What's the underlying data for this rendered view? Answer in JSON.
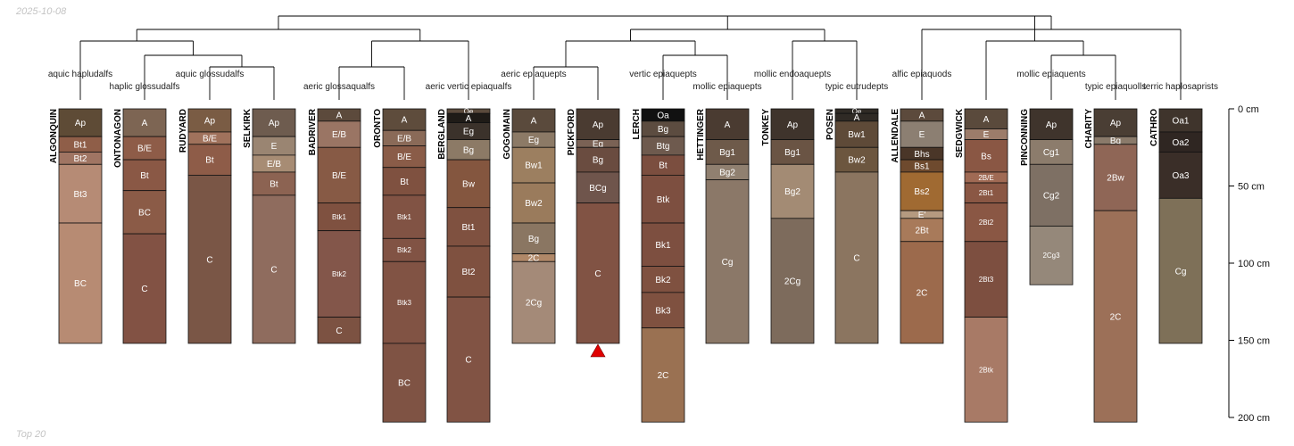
{
  "date": "2025-10-08",
  "footer": "Top 20",
  "depth_axis": {
    "unit": "cm",
    "min": 0,
    "max": 200,
    "ticks": [
      {
        "value": 0,
        "label": "0 cm"
      },
      {
        "value": 50,
        "label": "50 cm"
      },
      {
        "value": 100,
        "label": "100 cm"
      },
      {
        "value": 150,
        "label": "150 cm"
      },
      {
        "value": 200,
        "label": "200 cm"
      }
    ]
  },
  "profiles": [
    {
      "name": "ALGONQUIN",
      "subgroup": "aquic hapludalfs",
      "horizons": [
        {
          "name": "Ap",
          "top": 0,
          "bottom": 18,
          "color": "#5e4b36"
        },
        {
          "name": "Bt1",
          "top": 18,
          "bottom": 28,
          "color": "#8f5e48"
        },
        {
          "name": "Bt2",
          "top": 28,
          "bottom": 36,
          "color": "#a07563"
        },
        {
          "name": "Bt3",
          "top": 36,
          "bottom": 74,
          "color": "#b68b75"
        },
        {
          "name": "BC",
          "top": 74,
          "bottom": 152,
          "color": "#b78b73"
        }
      ]
    },
    {
      "name": "ONTONAGON",
      "subgroup": "haplic glossudalfs",
      "horizons": [
        {
          "name": "A",
          "top": 0,
          "bottom": 18,
          "color": "#7d6553"
        },
        {
          "name": "B/E",
          "top": 18,
          "bottom": 33,
          "color": "#8e5c48"
        },
        {
          "name": "Bt",
          "top": 33,
          "bottom": 53,
          "color": "#8a5845"
        },
        {
          "name": "BC",
          "top": 53,
          "bottom": 81,
          "color": "#8b5b47"
        },
        {
          "name": "C",
          "top": 81,
          "bottom": 152,
          "color": "#825244"
        }
      ]
    },
    {
      "name": "RUDYARD",
      "subgroup": "aquic glossudalfs",
      "horizons": [
        {
          "name": "Ap",
          "top": 0,
          "bottom": 15,
          "color": "#7a5c44"
        },
        {
          "name": "B/E",
          "top": 15,
          "bottom": 23,
          "color": "#a0725c"
        },
        {
          "name": "Bt",
          "top": 23,
          "bottom": 43,
          "color": "#8e5c48"
        },
        {
          "name": "C",
          "top": 43,
          "bottom": 152,
          "color": "#7a5646"
        }
      ]
    },
    {
      "name": "SELKIRK",
      "subgroup": "",
      "horizons": [
        {
          "name": "Ap",
          "top": 0,
          "bottom": 18,
          "color": "#6e5c4f"
        },
        {
          "name": "E",
          "top": 18,
          "bottom": 30,
          "color": "#9a8572"
        },
        {
          "name": "E/B",
          "top": 30,
          "bottom": 41,
          "color": "#a78c74"
        },
        {
          "name": "Bt",
          "top": 41,
          "bottom": 56,
          "color": "#8c6352"
        },
        {
          "name": "C",
          "top": 56,
          "bottom": 152,
          "color": "#8f6c5e"
        }
      ]
    },
    {
      "name": "BADRIVER",
      "subgroup": "aeric glossaqualfs",
      "horizons": [
        {
          "name": "A",
          "top": 0,
          "bottom": 8,
          "color": "#5c4a3c"
        },
        {
          "name": "E/B",
          "top": 8,
          "bottom": 25,
          "color": "#9a7564"
        },
        {
          "name": "B/E",
          "top": 25,
          "bottom": 61,
          "color": "#875a45"
        },
        {
          "name": "Btk1",
          "top": 61,
          "bottom": 79,
          "color": "#7f5140"
        },
        {
          "name": "Btk2",
          "top": 79,
          "bottom": 135,
          "color": "#83564a"
        },
        {
          "name": "C",
          "top": 135,
          "bottom": 152,
          "color": "#7c5242"
        }
      ]
    },
    {
      "name": "ORONTO",
      "subgroup": "",
      "horizons": [
        {
          "name": "A",
          "top": 0,
          "bottom": 14,
          "color": "#5e4c3c"
        },
        {
          "name": "E/B",
          "top": 14,
          "bottom": 24,
          "color": "#8a6a58"
        },
        {
          "name": "B/E",
          "top": 24,
          "bottom": 38,
          "color": "#8a5c48"
        },
        {
          "name": "Bt",
          "top": 38,
          "bottom": 56,
          "color": "#7f5140"
        },
        {
          "name": "Btk1",
          "top": 56,
          "bottom": 84,
          "color": "#815344"
        },
        {
          "name": "Btk2",
          "top": 84,
          "bottom": 99,
          "color": "#815344"
        },
        {
          "name": "Btk3",
          "top": 99,
          "bottom": 152,
          "color": "#815344"
        },
        {
          "name": "BC",
          "top": 152,
          "bottom": 203,
          "color": "#7f5344"
        }
      ]
    },
    {
      "name": "BERGLAND",
      "subgroup": "aeric vertic epiaqualfs",
      "horizons": [
        {
          "name": "Oe",
          "top": 0,
          "bottom": 3,
          "color": "#5a4a3c"
        },
        {
          "name": "A",
          "top": 3,
          "bottom": 9,
          "color": "#1f1b17"
        },
        {
          "name": "Eg",
          "top": 9,
          "bottom": 20,
          "color": "#3b322b"
        },
        {
          "name": "Bg",
          "top": 20,
          "bottom": 33,
          "color": "#8c7a66"
        },
        {
          "name": "Bw",
          "top": 33,
          "bottom": 64,
          "color": "#84563f"
        },
        {
          "name": "Bt1",
          "top": 64,
          "bottom": 89,
          "color": "#7f5140"
        },
        {
          "name": "Bt2",
          "top": 89,
          "bottom": 122,
          "color": "#7f5140"
        },
        {
          "name": "C",
          "top": 122,
          "bottom": 203,
          "color": "#815344"
        }
      ]
    },
    {
      "name": "GOGOMAIN",
      "subgroup": "aeric epiaquepts",
      "horizons": [
        {
          "name": "A",
          "top": 0,
          "bottom": 15,
          "color": "#5a4a3c"
        },
        {
          "name": "Eg",
          "top": 15,
          "bottom": 25,
          "color": "#8c7a66"
        },
        {
          "name": "Bw1",
          "top": 25,
          "bottom": 48,
          "color": "#9c7f60"
        },
        {
          "name": "Bw2",
          "top": 48,
          "bottom": 74,
          "color": "#9a7b5c"
        },
        {
          "name": "Bg",
          "top": 74,
          "bottom": 94,
          "color": "#8a7662"
        },
        {
          "name": "2C",
          "top": 94,
          "bottom": 99,
          "color": "#b08868"
        },
        {
          "name": "2Cg",
          "top": 99,
          "bottom": 152,
          "color": "#a48a78"
        }
      ]
    },
    {
      "name": "PICKFORD",
      "subgroup": "",
      "horizons": [
        {
          "name": "Ap",
          "top": 0,
          "bottom": 20,
          "color": "#4a3b31"
        },
        {
          "name": "Eg",
          "top": 20,
          "bottom": 25,
          "color": "#7a6255"
        },
        {
          "name": "Bg",
          "top": 25,
          "bottom": 41,
          "color": "#6a4c40"
        },
        {
          "name": "BCg",
          "top": 41,
          "bottom": 61,
          "color": "#6f554c"
        },
        {
          "name": "C",
          "top": 61,
          "bottom": 152,
          "color": "#815344"
        }
      ]
    },
    {
      "name": "LERCH",
      "subgroup": "vertic epiaquepts",
      "horizons": [
        {
          "name": "Oa",
          "top": 0,
          "bottom": 8,
          "color": "#111111"
        },
        {
          "name": "Bg",
          "top": 8,
          "bottom": 18,
          "color": "#5c4c40"
        },
        {
          "name": "Btg",
          "top": 18,
          "bottom": 30,
          "color": "#6e5a4e"
        },
        {
          "name": "Bt",
          "top": 30,
          "bottom": 43,
          "color": "#7b4e3f"
        },
        {
          "name": "Btk",
          "top": 43,
          "bottom": 74,
          "color": "#7d4f40"
        },
        {
          "name": "Bk1",
          "top": 74,
          "bottom": 102,
          "color": "#7d4f40"
        },
        {
          "name": "Bk2",
          "top": 102,
          "bottom": 119,
          "color": "#7f5140"
        },
        {
          "name": "Bk3",
          "top": 119,
          "bottom": 142,
          "color": "#7f5140"
        },
        {
          "name": "2C",
          "top": 142,
          "bottom": 203,
          "color": "#9a7152"
        }
      ]
    },
    {
      "name": "HETTINGER",
      "subgroup": "mollic epiaquepts",
      "horizons": [
        {
          "name": "A",
          "top": 0,
          "bottom": 20,
          "color": "#4a3b31"
        },
        {
          "name": "Bg1",
          "top": 20,
          "bottom": 36,
          "color": "#6e5a4a"
        },
        {
          "name": "Bg2",
          "top": 36,
          "bottom": 46,
          "color": "#908070"
        },
        {
          "name": "Cg",
          "top": 46,
          "bottom": 152,
          "color": "#8b7868"
        }
      ]
    },
    {
      "name": "TONKEY",
      "subgroup": "mollic endoaquepts",
      "horizons": [
        {
          "name": "Ap",
          "top": 0,
          "bottom": 20,
          "color": "#3f342c"
        },
        {
          "name": "Bg1",
          "top": 20,
          "bottom": 36,
          "color": "#6a5444"
        },
        {
          "name": "Bg2",
          "top": 36,
          "bottom": 71,
          "color": "#a38b74"
        },
        {
          "name": "2Cg",
          "top": 71,
          "bottom": 152,
          "color": "#7d6b5c"
        }
      ]
    },
    {
      "name": "POSEN",
      "subgroup": "typic eutrudepts",
      "horizons": [
        {
          "name": "Oe",
          "top": 0,
          "bottom": 3,
          "color": "#2f2a25"
        },
        {
          "name": "A",
          "top": 3,
          "bottom": 8,
          "color": "#2f2a25"
        },
        {
          "name": "Bw1",
          "top": 8,
          "bottom": 25,
          "color": "#5e4a38"
        },
        {
          "name": "Bw2",
          "top": 25,
          "bottom": 41,
          "color": "#6c563f"
        },
        {
          "name": "C",
          "top": 41,
          "bottom": 152,
          "color": "#8b7560"
        }
      ]
    },
    {
      "name": "ALLENDALE",
      "subgroup": "alfic epiaquods",
      "horizons": [
        {
          "name": "A",
          "top": 0,
          "bottom": 8,
          "color": "#5c4a3c"
        },
        {
          "name": "E",
          "top": 8,
          "bottom": 25,
          "color": "#8c7f72"
        },
        {
          "name": "Bhs",
          "top": 25,
          "bottom": 33,
          "color": "#4a3628"
        },
        {
          "name": "Bs1",
          "top": 33,
          "bottom": 41,
          "color": "#6e4a2e"
        },
        {
          "name": "Bs2",
          "top": 41,
          "bottom": 66,
          "color": "#a06a32"
        },
        {
          "name": "E'",
          "top": 66,
          "bottom": 71,
          "color": "#b59a80"
        },
        {
          "name": "2Bt",
          "top": 71,
          "bottom": 86,
          "color": "#a87a5a"
        },
        {
          "name": "2C",
          "top": 86,
          "bottom": 152,
          "color": "#9c6a4c"
        }
      ]
    },
    {
      "name": "SEDGWICK",
      "subgroup": "",
      "horizons": [
        {
          "name": "A",
          "top": 0,
          "bottom": 13,
          "color": "#5a4a3c"
        },
        {
          "name": "E",
          "top": 13,
          "bottom": 20,
          "color": "#9c7c6a"
        },
        {
          "name": "Bs",
          "top": 20,
          "bottom": 41,
          "color": "#8a5744"
        },
        {
          "name": "2B/E",
          "top": 41,
          "bottom": 48,
          "color": "#a06a54"
        },
        {
          "name": "2Bt1",
          "top": 48,
          "bottom": 61,
          "color": "#8a5744"
        },
        {
          "name": "2Bt2",
          "top": 61,
          "bottom": 86,
          "color": "#8a5744"
        },
        {
          "name": "2Bt3",
          "top": 86,
          "bottom": 135,
          "color": "#7d4f40"
        },
        {
          "name": "2Btk",
          "top": 135,
          "bottom": 203,
          "color": "#a87a66"
        }
      ]
    },
    {
      "name": "PINCONNING",
      "subgroup": "mollic epiaquents",
      "horizons": [
        {
          "name": "Ap",
          "top": 0,
          "bottom": 20,
          "color": "#3f342c"
        },
        {
          "name": "Cg1",
          "top": 20,
          "bottom": 36,
          "color": "#8c7c6c"
        },
        {
          "name": "Cg2",
          "top": 36,
          "bottom": 76,
          "color": "#7e7064"
        },
        {
          "name": "2Cg3",
          "top": 76,
          "bottom": 114,
          "color": "#95887a"
        }
      ]
    },
    {
      "name": "CHARITY",
      "subgroup": "typic epiaquolls",
      "horizons": [
        {
          "name": "Ap",
          "top": 0,
          "bottom": 18,
          "color": "#4a3e34"
        },
        {
          "name": "Bg",
          "top": 18,
          "bottom": 23,
          "color": "#8a7a6a"
        },
        {
          "name": "2Bw",
          "top": 23,
          "bottom": 66,
          "color": "#8f6656"
        },
        {
          "name": "2C",
          "top": 66,
          "bottom": 203,
          "color": "#9c7058"
        }
      ]
    },
    {
      "name": "CATHRO",
      "subgroup": "terric haplosaprists",
      "horizons": [
        {
          "name": "Oa1",
          "top": 0,
          "bottom": 15,
          "color": "#3f342c"
        },
        {
          "name": "Oa2",
          "top": 15,
          "bottom": 28,
          "color": "#2f2622"
        },
        {
          "name": "Oa3",
          "top": 28,
          "bottom": 58,
          "color": "#3a2e28"
        },
        {
          "name": "Cg",
          "top": 58,
          "bottom": 152,
          "color": "#7e7058"
        }
      ]
    }
  ],
  "annotations": [
    {
      "profile": "PICKFORD",
      "type": "triangle",
      "depth": 152,
      "color": "#e00000"
    }
  ]
}
